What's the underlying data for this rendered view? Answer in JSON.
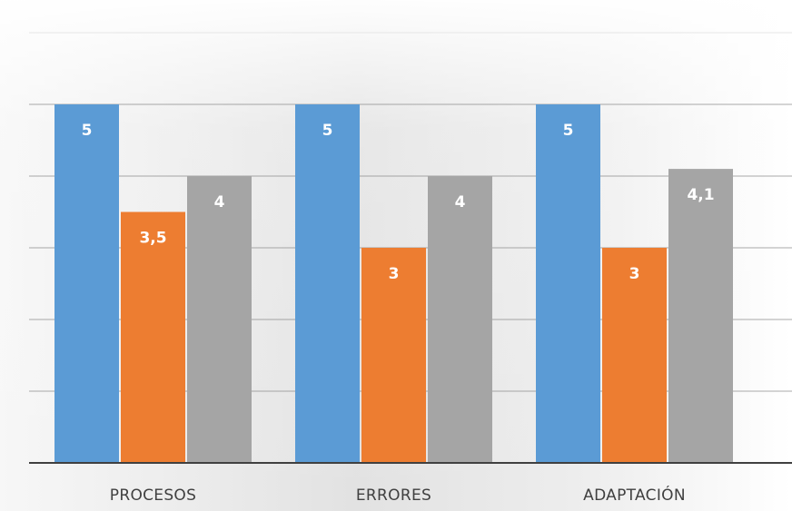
{
  "chart_data": {
    "type": "bar",
    "categories": [
      "PROCESOS",
      "ERRORES",
      "ADAPTACIÓN"
    ],
    "series": [
      {
        "color": "#5b9bd5",
        "values": [
          5,
          5,
          5
        ],
        "labels": [
          "5",
          "5",
          "5"
        ]
      },
      {
        "color": "#ed7d31",
        "values": [
          3.5,
          3,
          3
        ],
        "labels": [
          "3,5",
          "3",
          "3"
        ]
      },
      {
        "color": "#a5a5a5",
        "values": [
          4,
          4,
          4.1
        ],
        "labels": [
          "4",
          "4",
          "4,1"
        ]
      }
    ],
    "ylim": [
      0,
      6
    ],
    "grid": true,
    "legend": "none",
    "colors": {
      "gridline": "#d9d9d9",
      "axis": "#404040",
      "background_top": "#ffffff",
      "background_mid": "#e3e3e3"
    }
  }
}
